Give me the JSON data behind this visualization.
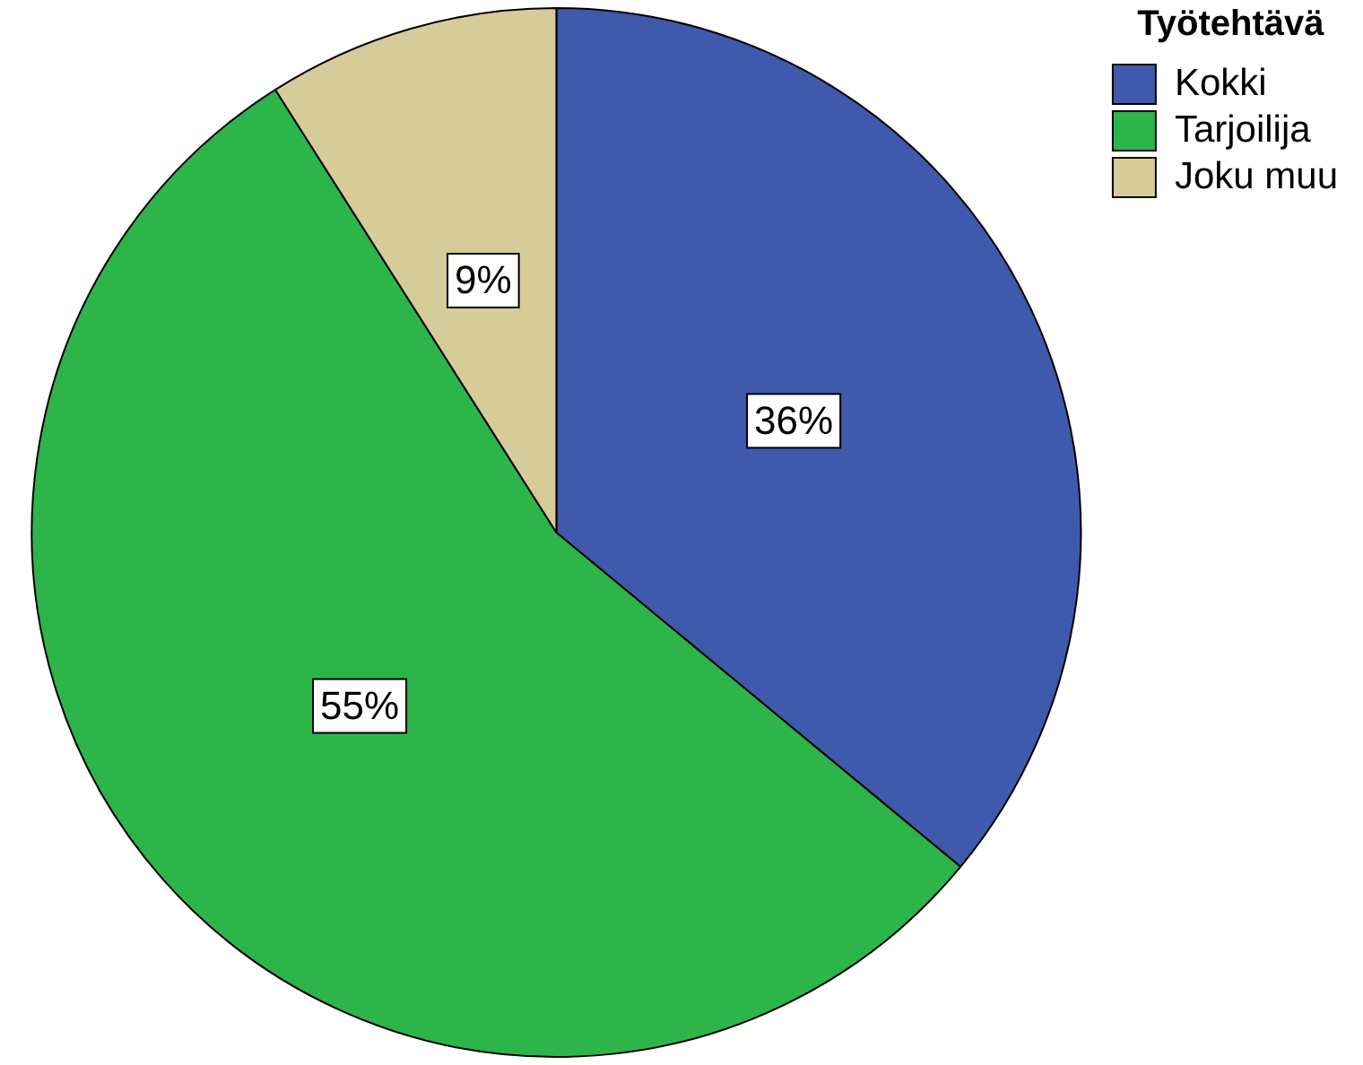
{
  "chart_data": {
    "type": "pie",
    "legend_title": "Työtehtävä",
    "categories": [
      "Kokki",
      "Tarjoilija",
      "Joku muu"
    ],
    "values": [
      36,
      55,
      9
    ],
    "colors": [
      "#3f59ac",
      "#2db54a",
      "#d6cc9a"
    ],
    "value_labels": [
      "36%",
      "55%",
      "9%"
    ],
    "legend": "top right"
  }
}
